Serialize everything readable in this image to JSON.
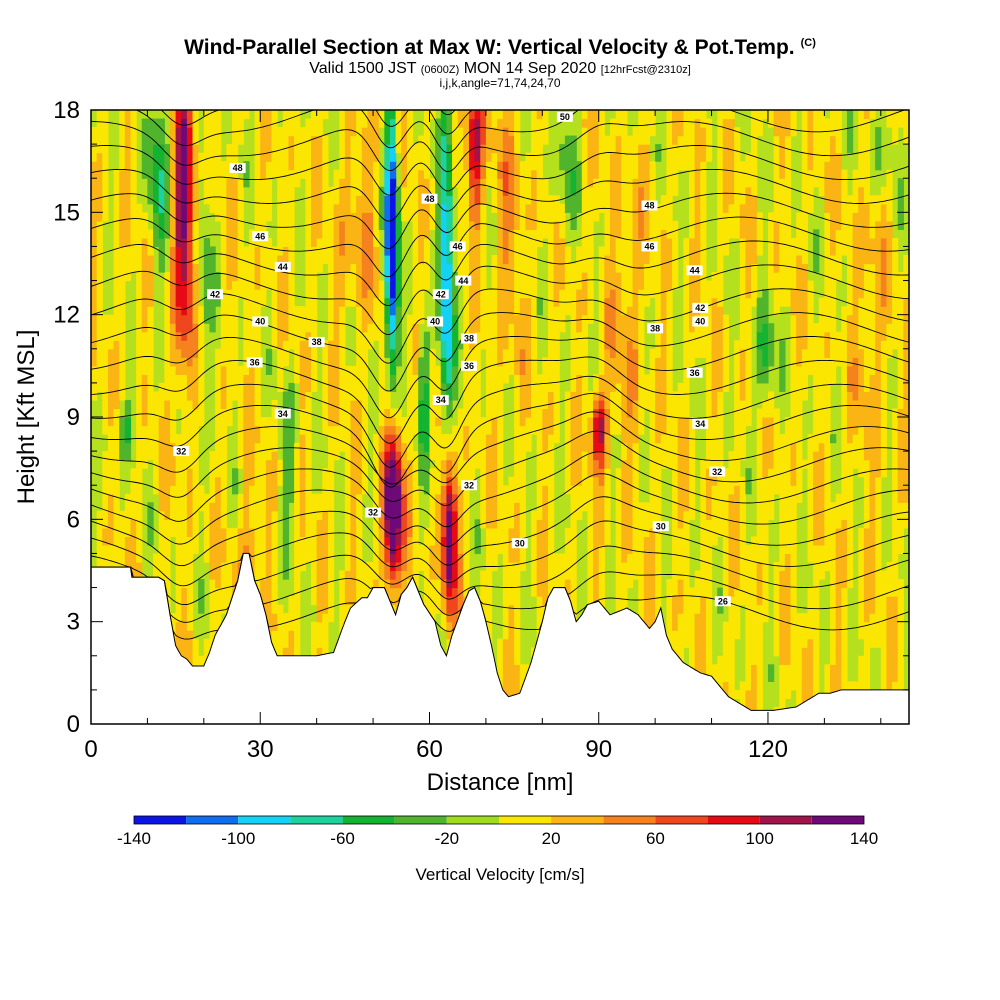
{
  "title": {
    "main": "Wind-Parallel Section at Max W: Vertical Velocity & Pot.Temp.",
    "copyright": "(C)",
    "valid_prefix": "Valid 1500 JST",
    "valid_utc": "(0600Z)",
    "valid_date": "MON 14 Sep 2020",
    "forecast": "[12hrFcst@2310z]",
    "section_params": "i,j,k,angle=71,74,24,70"
  },
  "chart_data": {
    "type": "heatmap",
    "xlabel": "Distance [nm]",
    "ylabel": "Height [Kft MSL]",
    "xlim": [
      0,
      145
    ],
    "ylim": [
      0,
      18
    ],
    "x_ticks": [
      0,
      30,
      60,
      90,
      120
    ],
    "y_ticks": [
      0,
      3,
      6,
      9,
      12,
      15,
      18
    ],
    "colorbar": {
      "label": "Vertical Velocity [cm/s]",
      "ticks": [
        -140,
        -100,
        -60,
        -20,
        20,
        60,
        100,
        140
      ],
      "bounds": [
        -140,
        -120,
        -100,
        -80,
        -60,
        -40,
        -20,
        0,
        20,
        40,
        60,
        80,
        100,
        120,
        140
      ],
      "colors": [
        "#0a14e6",
        "#0f6ef0",
        "#14d2f5",
        "#1ed2a0",
        "#14b432",
        "#50b42d",
        "#a0dc1e",
        "#fae600",
        "#fab414",
        "#f5821e",
        "#f0461e",
        "#e60a14",
        "#a0144b",
        "#6e0a78"
      ]
    },
    "theta_contour_labels": [
      {
        "value": "26",
        "x": 112.0,
        "y": 3.6
      },
      {
        "value": "30",
        "x": 76.0,
        "y": 5.3
      },
      {
        "value": "30",
        "x": 101.0,
        "y": 5.8
      },
      {
        "value": "32",
        "x": 16.0,
        "y": 8.0
      },
      {
        "value": "32",
        "x": 50.0,
        "y": 6.2
      },
      {
        "value": "32",
        "x": 67.0,
        "y": 7.0
      },
      {
        "value": "32",
        "x": 111.0,
        "y": 7.4
      },
      {
        "value": "34",
        "x": 34.0,
        "y": 9.1
      },
      {
        "value": "34",
        "x": 62.0,
        "y": 9.5
      },
      {
        "value": "34",
        "x": 108.0,
        "y": 8.8
      },
      {
        "value": "36",
        "x": 29.0,
        "y": 10.6
      },
      {
        "value": "36",
        "x": 67.0,
        "y": 10.5
      },
      {
        "value": "36",
        "x": 107.0,
        "y": 10.3
      },
      {
        "value": "38",
        "x": 40.0,
        "y": 11.2
      },
      {
        "value": "38",
        "x": 67.0,
        "y": 11.3
      },
      {
        "value": "38",
        "x": 100.0,
        "y": 11.6
      },
      {
        "value": "40",
        "x": 30.0,
        "y": 11.8
      },
      {
        "value": "40",
        "x": 61.0,
        "y": 11.8
      },
      {
        "value": "40",
        "x": 108.0,
        "y": 11.8
      },
      {
        "value": "42",
        "x": 22.0,
        "y": 12.6
      },
      {
        "value": "42",
        "x": 62.0,
        "y": 12.6
      },
      {
        "value": "42",
        "x": 108.0,
        "y": 12.2
      },
      {
        "value": "44",
        "x": 34.0,
        "y": 13.4
      },
      {
        "value": "44",
        "x": 66.0,
        "y": 13.0
      },
      {
        "value": "44",
        "x": 107.0,
        "y": 13.3
      },
      {
        "value": "46",
        "x": 30.0,
        "y": 14.3
      },
      {
        "value": "46",
        "x": 65.0,
        "y": 14.0
      },
      {
        "value": "46",
        "x": 99.0,
        "y": 14.0
      },
      {
        "value": "48",
        "x": 26.0,
        "y": 16.3
      },
      {
        "value": "48",
        "x": 60.0,
        "y": 15.4
      },
      {
        "value": "48",
        "x": 99.0,
        "y": 15.2
      },
      {
        "value": "50",
        "x": 84.0,
        "y": 17.8
      }
    ],
    "updrafts": [
      {
        "x": 16,
        "y_bottom": 11.5,
        "y_top": 18,
        "w": 140
      },
      {
        "x": 54,
        "y_bottom": 4.0,
        "y_top": 8.3,
        "w": 140
      },
      {
        "x": 64,
        "y_bottom": 3.8,
        "y_top": 7.8,
        "w": 140
      },
      {
        "x": 68,
        "y_bottom": 15.5,
        "y_top": 18,
        "w": 110
      },
      {
        "x": 90,
        "y_bottom": 8.0,
        "y_top": 10.0,
        "w": 100
      },
      {
        "x": 28,
        "y_bottom": 1.5,
        "y_top": 6.5,
        "w": 50
      }
    ],
    "downdrafts": [
      {
        "x": 53,
        "y_bottom": 11.0,
        "y_top": 17.8,
        "w": -140
      },
      {
        "x": 63,
        "y_bottom": 10.0,
        "y_top": 18.0,
        "w": -100
      },
      {
        "x": 12,
        "y_bottom": 13.0,
        "y_top": 18.0,
        "w": -60
      },
      {
        "x": 119,
        "y_bottom": 9.0,
        "y_top": 12.0,
        "w": -40
      }
    ]
  }
}
